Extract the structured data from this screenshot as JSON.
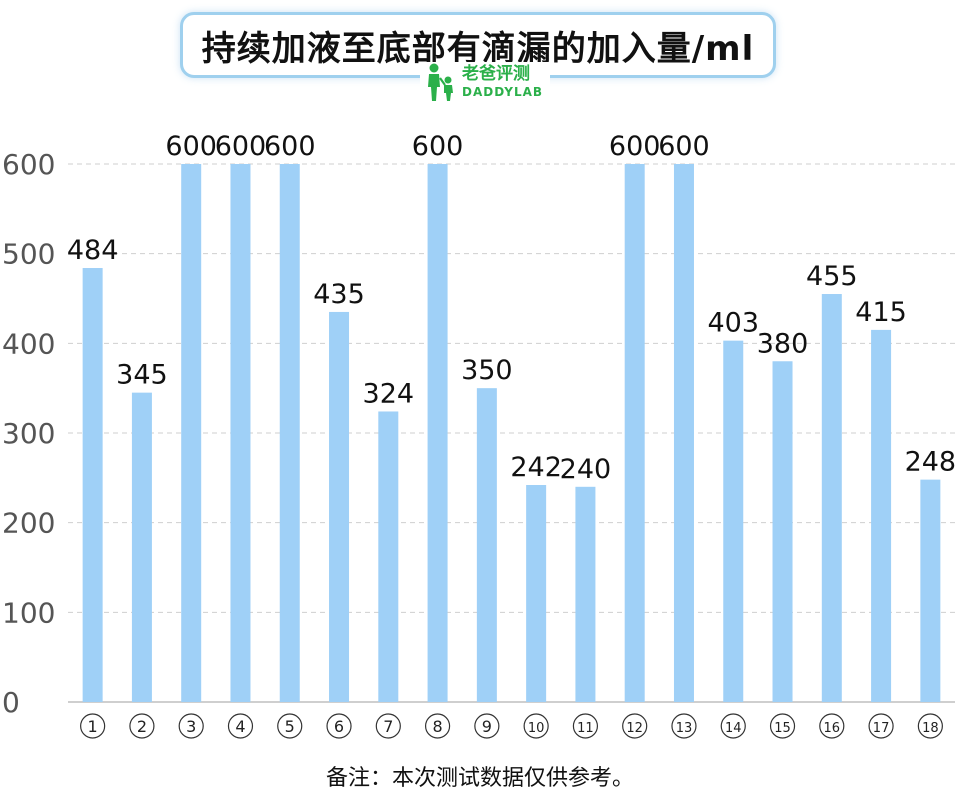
{
  "logo": {
    "name_cn": "老爸评测",
    "name_en": "DADDYLAB"
  },
  "footnote": "备注：本次测试数据仅供参考。",
  "colors": {
    "bar": "#9fd0f7",
    "grid": "#cfcfcf",
    "axis_text": "#555555",
    "label_text": "#111111",
    "logo_green": "#2bb04a"
  },
  "chart_data": {
    "type": "bar",
    "title": "持续加液至底部有滴漏的加入量/ml",
    "categories": [
      "①",
      "②",
      "③",
      "④",
      "⑤",
      "⑥",
      "⑦",
      "⑧",
      "⑨",
      "⑩",
      "⑪",
      "⑫",
      "⑬",
      "⑭",
      "⑮",
      "⑯",
      "⑰",
      "⑱"
    ],
    "values": [
      484,
      345,
      600,
      600,
      600,
      435,
      324,
      600,
      350,
      242,
      240,
      600,
      600,
      403,
      380,
      455,
      415,
      248
    ],
    "yticks": [
      0,
      100,
      200,
      300,
      400,
      500,
      600
    ],
    "ylim": [
      0,
      600
    ],
    "grid": true,
    "data_labels": true
  }
}
